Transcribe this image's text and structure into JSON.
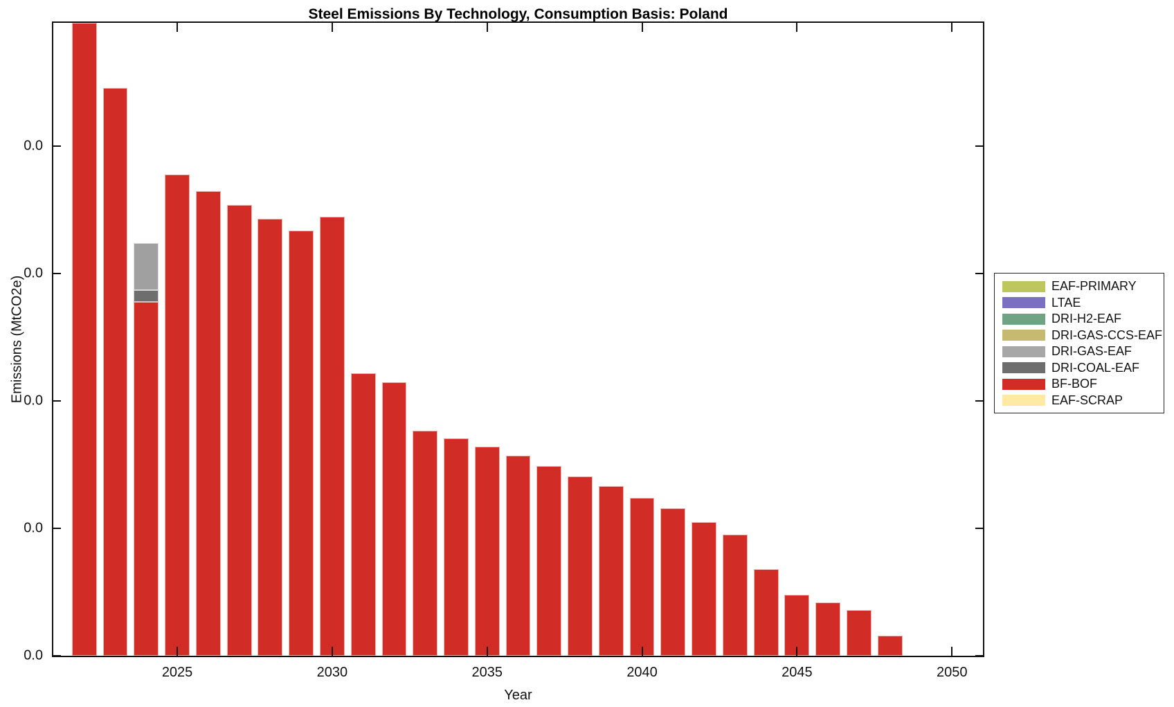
{
  "figure": {
    "title": "Steel Emissions By Technology, Consumption Basis: Poland",
    "xlabel": "Year",
    "ylabel": "Emissions (MtCO2e)"
  },
  "legend": {
    "entries": [
      {
        "label": "EAF-PRIMARY",
        "color": "#bdc75e"
      },
      {
        "label": "LTAE",
        "color": "#7b6fc2"
      },
      {
        "label": "DRI-H2-EAF",
        "color": "#6fa384"
      },
      {
        "label": "DRI-GAS-CCS-EAF",
        "color": "#c5ba70"
      },
      {
        "label": "DRI-GAS-EAF",
        "color": "#a7a7a7"
      },
      {
        "label": "DRI-COAL-EAF",
        "color": "#6e6e6e"
      },
      {
        "label": "BF-BOF",
        "color": "#d12c26"
      },
      {
        "label": "EAF-SCRAP",
        "color": "#ffe9a3"
      }
    ]
  },
  "chart_data": {
    "type": "bar",
    "stacked": true,
    "title": "Steel Emissions By Technology, Consumption Basis: Poland",
    "xlabel": "Year",
    "ylabel": "Emissions (MtCO2e)",
    "legend_position": "right-outside",
    "grid": false,
    "xlim": [
      2021,
      2051
    ],
    "ylim": [
      0,
      0.0497
    ],
    "bar_width_years": 0.8,
    "xticks": [
      2025,
      2030,
      2035,
      2040,
      2045,
      2050
    ],
    "xtick_labels": [
      "2025",
      "2030",
      "2035",
      "2040",
      "2045",
      "2050"
    ],
    "yticks": [
      0,
      0.01,
      0.02,
      0.03,
      0.04
    ],
    "ytick_labels": [
      "0.0",
      "0.0",
      "0.0",
      "0.0",
      "0.0"
    ],
    "x": [
      2022,
      2023,
      2024,
      2025,
      2026,
      2027,
      2028,
      2029,
      2030,
      2031,
      2032,
      2033,
      2034,
      2035,
      2036,
      2037,
      2038,
      2039,
      2040,
      2041,
      2042,
      2043,
      2044,
      2045,
      2046,
      2047,
      2048
    ],
    "series": [
      {
        "name": "EAF-SCRAP",
        "color": "#ffe9a3",
        "values": [
          0,
          0,
          0,
          0,
          0,
          0,
          0,
          0,
          0,
          0,
          0,
          0,
          0,
          0,
          0,
          0,
          0,
          0,
          0,
          0,
          0,
          0,
          0,
          0,
          0,
          0,
          0
        ]
      },
      {
        "name": "BF-BOF",
        "color": "#d12c26",
        "values": [
          0.0525,
          0.0446,
          0.0278,
          0.0378,
          0.0365,
          0.0354,
          0.0343,
          0.0334,
          0.0345,
          0.0222,
          0.0215,
          0.0177,
          0.0171,
          0.0164,
          0.0157,
          0.0149,
          0.0141,
          0.0133,
          0.0124,
          0.0116,
          0.0105,
          0.0095,
          0.0068,
          0.0048,
          0.0042,
          0.0036,
          0.0016
        ]
      },
      {
        "name": "DRI-COAL-EAF",
        "color": "#6e6e6e",
        "values": [
          0,
          0,
          0.0009,
          0,
          0,
          0,
          0,
          0,
          0,
          0,
          0,
          0,
          0,
          0,
          0,
          0,
          0,
          0,
          0,
          0,
          0,
          0,
          0,
          0,
          0,
          0,
          0
        ]
      },
      {
        "name": "DRI-GAS-EAF",
        "color": "#a0a0a0",
        "values": [
          0,
          0,
          0.0037,
          0,
          0,
          0,
          0,
          0,
          0,
          0,
          0,
          0,
          0,
          0,
          0,
          0,
          0,
          0,
          0,
          0,
          0,
          0,
          0,
          0,
          0,
          0,
          0
        ]
      },
      {
        "name": "DRI-GAS-CCS-EAF",
        "color": "#c5ba70",
        "values": [
          0,
          0,
          0,
          0,
          0,
          0,
          0,
          0,
          0,
          0,
          0,
          0,
          0,
          0,
          0,
          0,
          0,
          0,
          0,
          0,
          0,
          0,
          0,
          0,
          0,
          0,
          0
        ]
      },
      {
        "name": "DRI-H2-EAF",
        "color": "#6fa384",
        "values": [
          0,
          0,
          0,
          0,
          0,
          0,
          0,
          0,
          0,
          0,
          0,
          0,
          0,
          0,
          0,
          0,
          0,
          0,
          0,
          0,
          0,
          0,
          0,
          0,
          0,
          0,
          0
        ]
      },
      {
        "name": "LTAE",
        "color": "#7b6fc2",
        "values": [
          0,
          0,
          0,
          0,
          0,
          0,
          0,
          0,
          0,
          0,
          0,
          0,
          0,
          0,
          0,
          0,
          0,
          0,
          0,
          0,
          0,
          0,
          0,
          0,
          0,
          0,
          0
        ]
      },
      {
        "name": "EAF-PRIMARY",
        "color": "#bdc75e",
        "values": [
          0,
          0,
          0,
          0,
          0,
          0,
          0,
          0,
          0,
          0,
          0,
          0,
          0,
          0,
          0,
          0,
          0,
          0,
          0,
          0,
          0,
          0,
          0,
          0,
          0,
          0,
          0
        ]
      }
    ]
  }
}
